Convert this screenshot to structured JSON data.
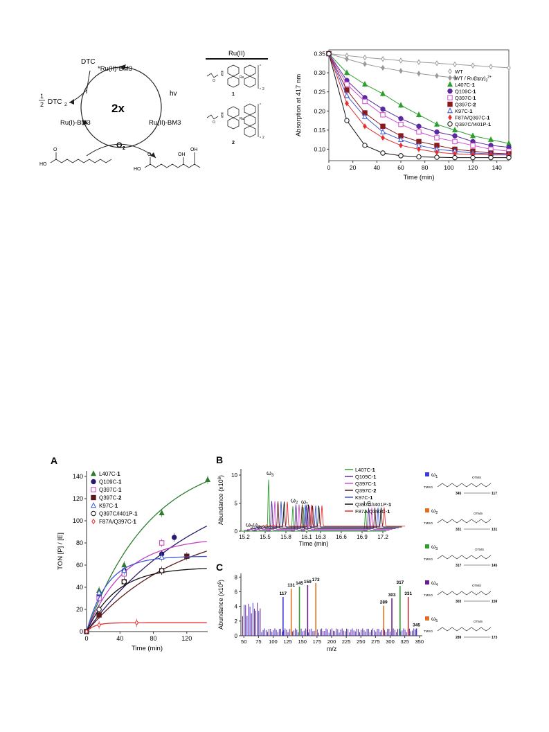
{
  "top_scheme": {
    "labels": {
      "dtc": "DTC",
      "half": "1",
      "half_den": "2",
      "dtc2": "DTC",
      "dtc2_sub": "2",
      "ru2_star": "*Ru(II)-BM3",
      "ru1": "Ru(I)-BM3",
      "ru2": "Ru(II)-BM3",
      "center": "2x",
      "hv": "hv",
      "o2": "O",
      "o2_sub": "2",
      "ho_left": "HO",
      "ho_right": "HO",
      "oh1": "OH",
      "oh2": "OH",
      "o_left": "O",
      "o_right": "O"
    },
    "ru_structures": {
      "header": "Ru(II)",
      "compound1": "1",
      "compound2": "2",
      "ru_atom": "Ru",
      "sub2": "2",
      "n": "N",
      "h": "H",
      "o": "O"
    }
  },
  "chart_top": {
    "chart_data": {
      "type": "line",
      "ylabel": "Absorption at 417 nm",
      "xlabel": "Time (min)",
      "xlim": [
        0,
        150
      ],
      "ylim": [
        0.07,
        0.36
      ],
      "x_ticks": [
        "0",
        "20",
        "40",
        "60",
        "80",
        "100",
        "120",
        "140"
      ],
      "y_ticks": [
        "0.10",
        "0.15",
        "0.20",
        "0.25",
        "0.30",
        "0.35"
      ],
      "series": [
        {
          "name": "WT",
          "color": "#999999",
          "marker": "diamond-open",
          "x": [
            0,
            15,
            30,
            45,
            60,
            75,
            90,
            105,
            120,
            135,
            150
          ],
          "y": [
            0.35,
            0.345,
            0.34,
            0.336,
            0.332,
            0.328,
            0.325,
            0.322,
            0.319,
            0.316,
            0.313
          ]
        },
        {
          "name": "WT / Ru(bpy)",
          "name_sup": "2+",
          "name_sub": "3",
          "color": "#999999",
          "marker": "diamond",
          "x": [
            0,
            15,
            30,
            45,
            60,
            75,
            90,
            105
          ],
          "y": [
            0.35,
            0.336,
            0.323,
            0.313,
            0.305,
            0.298,
            0.292,
            0.287
          ]
        },
        {
          "name": "L407C-",
          "cmpd": "1",
          "color": "#2e9e2e",
          "marker": "triangle",
          "x": [
            0,
            15,
            30,
            45,
            60,
            75,
            90,
            105,
            120,
            135,
            150
          ],
          "y": [
            0.35,
            0.3,
            0.27,
            0.245,
            0.215,
            0.19,
            0.165,
            0.15,
            0.135,
            0.125,
            0.115
          ]
        },
        {
          "name": "Q109C-",
          "cmpd": "1",
          "color": "#5b2a9e",
          "marker": "circle",
          "x": [
            0,
            15,
            30,
            45,
            60,
            75,
            90,
            105,
            120,
            135,
            150
          ],
          "y": [
            0.35,
            0.28,
            0.235,
            0.205,
            0.18,
            0.16,
            0.145,
            0.135,
            0.12,
            0.11,
            0.105
          ]
        },
        {
          "name": "Q397C-",
          "cmpd": "1",
          "color": "#d04fd0",
          "marker": "square-open",
          "x": [
            0,
            15,
            30,
            45,
            60,
            75,
            90,
            105,
            120,
            135,
            150
          ],
          "y": [
            0.35,
            0.27,
            0.225,
            0.19,
            0.165,
            0.145,
            0.13,
            0.12,
            0.11,
            0.1,
            0.095
          ]
        },
        {
          "name": "Q397C-",
          "cmpd": "2",
          "color": "#8b1a1a",
          "marker": "square",
          "x": [
            0,
            15,
            30,
            45,
            60,
            75,
            90,
            105,
            120,
            135,
            150
          ],
          "y": [
            0.35,
            0.255,
            0.195,
            0.16,
            0.135,
            0.12,
            0.11,
            0.1,
            0.095,
            0.09,
            0.088
          ]
        },
        {
          "name": "K97C-",
          "cmpd": "1",
          "color": "#3b55d6",
          "marker": "triangle-open",
          "x": [
            0,
            15,
            30,
            45,
            60,
            75,
            90,
            105,
            120,
            135,
            150
          ],
          "y": [
            0.35,
            0.24,
            0.185,
            0.145,
            0.125,
            0.11,
            0.1,
            0.095,
            0.09,
            0.088,
            0.087
          ]
        },
        {
          "name": "F87A/Q397C-",
          "cmpd": "1",
          "color": "#e03030",
          "marker": "diamond",
          "x": [
            0,
            15,
            30,
            45,
            60,
            75,
            90,
            105,
            120,
            135,
            150
          ],
          "y": [
            0.35,
            0.22,
            0.16,
            0.13,
            0.11,
            0.1,
            0.092,
            0.088,
            0.086,
            0.085,
            0.085
          ]
        },
        {
          "name": "Q397C/I401P-",
          "cmpd": "1",
          "color": "#111111",
          "marker": "circle-open",
          "x": [
            0,
            15,
            30,
            45,
            60,
            75,
            90,
            105,
            120,
            135,
            150
          ],
          "y": [
            0.35,
            0.175,
            0.11,
            0.09,
            0.083,
            0.08,
            0.079,
            0.078,
            0.078,
            0.078,
            0.078
          ]
        }
      ]
    }
  },
  "chart_a": {
    "label": "A",
    "chart_data": {
      "type": "line",
      "ylabel": "TON [P] / [E]",
      "xlabel": "Time (min)",
      "xlim": [
        0,
        145
      ],
      "ylim": [
        0,
        145
      ],
      "x_ticks": [
        "0",
        "40",
        "80",
        "120"
      ],
      "y_ticks": [
        "0",
        "20",
        "40",
        "60",
        "80",
        "100",
        "120",
        "140"
      ],
      "series": [
        {
          "name": "L407C-",
          "cmpd": "1",
          "color": "#2e7d2e",
          "marker": "triangle",
          "x": [
            0,
            15,
            45,
            90,
            145
          ],
          "y": [
            0,
            37,
            60,
            107,
            137
          ],
          "fit_max": 160,
          "fit_k": 0.013
        },
        {
          "name": "Q109C-",
          "cmpd": "1",
          "color": "#2a1a6e",
          "marker": "circle",
          "x": [
            0,
            15,
            45,
            90,
            105
          ],
          "y": [
            0,
            32,
            55,
            70,
            85
          ],
          "fit_max": 150,
          "fit_k": 0.007
        },
        {
          "name": "Q397C-",
          "cmpd": "1",
          "color": "#c040c0",
          "marker": "square-open",
          "x": [
            0,
            15,
            45,
            90
          ],
          "y": [
            0,
            30,
            52,
            80
          ],
          "fit_max": 85,
          "fit_k": 0.022
        },
        {
          "name": "Q397C-",
          "cmpd": "2",
          "color": "#5a1a1a",
          "marker": "square",
          "x": [
            0,
            15,
            45,
            90,
            120
          ],
          "y": [
            0,
            15,
            45,
            55,
            68
          ],
          "fit_max": 100,
          "fit_k": 0.009
        },
        {
          "name": "K97C-",
          "cmpd": "1",
          "color": "#3b55d6",
          "marker": "triangle-open",
          "x": [
            0,
            15,
            45,
            90
          ],
          "y": [
            0,
            35,
            55,
            67
          ],
          "fit_max": 68,
          "fit_k": 0.04
        },
        {
          "name": "Q397C/I401P-",
          "cmpd": "1",
          "color": "#111111",
          "marker": "circle-open",
          "x": [
            0,
            15,
            45,
            90
          ],
          "y": [
            0,
            20,
            45,
            55
          ],
          "fit_max": 58,
          "fit_k": 0.028
        },
        {
          "name": "F87A/Q397C-",
          "cmpd": "1",
          "color": "#e03030",
          "marker": "diamond-open",
          "x": [
            0,
            15,
            60
          ],
          "y": [
            0,
            6,
            8
          ],
          "fit_max": 8,
          "fit_k": 0.1
        }
      ]
    }
  },
  "chart_b": {
    "label": "B",
    "chart_data": {
      "type": "line",
      "ylabel": "Abundance",
      "ylabel_unit": "(x10",
      "ylabel_sup": "6",
      "ylabel_close": ")",
      "xlabel": "Time (min)",
      "x_ticks": [
        "15.2",
        "15.5",
        "15.8",
        "16.1",
        "16.3",
        "16.6",
        "16.9",
        "17.2"
      ],
      "y_ticks": [
        "0",
        "5",
        "10"
      ],
      "peaks": [
        {
          "label": "ω",
          "sub": "3",
          "x": 15.55,
          "height": 9.5
        },
        {
          "label": "ω",
          "sub": "2",
          "x": 15.9,
          "height": 4.6
        },
        {
          "label": "ω",
          "sub": "1",
          "x": 16.05,
          "height": 4.4
        },
        {
          "label": "ω",
          "sub": "5",
          "x": 15.25,
          "height": 0.3
        },
        {
          "label": "ω",
          "sub": "4",
          "x": 15.35,
          "height": 0.3
        },
        {
          "label": "I.S.",
          "sub": "",
          "x": 16.95,
          "height": 4.0
        }
      ],
      "series": [
        {
          "name": "L407C-",
          "cmpd": "1",
          "color": "#2e9e2e"
        },
        {
          "name": "Q109C-",
          "cmpd": "1",
          "color": "#5b2a9e"
        },
        {
          "name": "Q397C-",
          "cmpd": "1",
          "color": "#d04fd0"
        },
        {
          "name": "Q397C-",
          "cmpd": "2",
          "color": "#5a1a1a"
        },
        {
          "name": "K97C-",
          "cmpd": "1",
          "color": "#3b55d6"
        },
        {
          "name": "Q397C/I401P-",
          "cmpd": "1",
          "color": "#111111"
        },
        {
          "name": "F87A/Q397C-",
          "cmpd": "1",
          "color": "#e03030"
        }
      ]
    }
  },
  "chart_c": {
    "label": "C",
    "chart_data": {
      "type": "bar",
      "ylabel": "Abundance",
      "ylabel_unit": "(x10",
      "ylabel_sup": "5",
      "ylabel_close": ")",
      "xlabel": "m/z",
      "x_ticks": [
        "50",
        "75",
        "100",
        "125",
        "150",
        "175",
        "200",
        "225",
        "250",
        "275",
        "300",
        "325",
        "350"
      ],
      "y_ticks": [
        "0",
        "2",
        "4",
        "6",
        "8"
      ],
      "labeled_peaks": [
        {
          "mz": 117,
          "label": "117",
          "color": "#3b3bd6",
          "h": 5.3
        },
        {
          "mz": 131,
          "label": "131",
          "color": "#e07020",
          "h": 6.4
        },
        {
          "mz": 145,
          "label": "145",
          "color": "#2e9e2e",
          "h": 6.7
        },
        {
          "mz": 159,
          "label": "159",
          "color": "#6a1f8c",
          "h": 6.9
        },
        {
          "mz": 173,
          "label": "173",
          "color": "#e07020",
          "h": 7.2
        },
        {
          "mz": 289,
          "label": "289",
          "color": "#e07020",
          "h": 4.1
        },
        {
          "mz": 303,
          "label": "303",
          "color": "#6a1f8c",
          "h": 5.1
        },
        {
          "mz": 317,
          "label": "317",
          "color": "#2e9e2e",
          "h": 6.8
        },
        {
          "mz": 331,
          "label": "331",
          "color": "#c03030",
          "h": 5.3
        },
        {
          "mz": 345,
          "label": "345",
          "color": "#3b3bd6",
          "h": 1.0
        }
      ]
    }
  },
  "omega_structures": [
    {
      "label": "ω",
      "sub": "1",
      "color": "#3b3bd6",
      "frag_a": "345",
      "frag_b": "117",
      "tms": "OTMS",
      "tmso": "TMSO"
    },
    {
      "label": "ω",
      "sub": "2",
      "color": "#e07020",
      "frag_a": "331",
      "frag_b": "131",
      "tms": "OTMS",
      "tmso": "TMSO"
    },
    {
      "label": "ω",
      "sub": "3",
      "color": "#2e9e2e",
      "frag_a": "317",
      "frag_b": "145",
      "tms": "OTMS",
      "tmso": "TMSO"
    },
    {
      "label": "ω",
      "sub": "4",
      "color": "#6a1f8c",
      "frag_a": "303",
      "frag_b": "159",
      "tms": "OTMS",
      "tmso": "TMSO"
    },
    {
      "label": "ω",
      "sub": "5",
      "color": "#e07020",
      "frag_a": "289",
      "frag_b": "173",
      "tms": "OTMS",
      "tmso": "TMSO"
    }
  ]
}
